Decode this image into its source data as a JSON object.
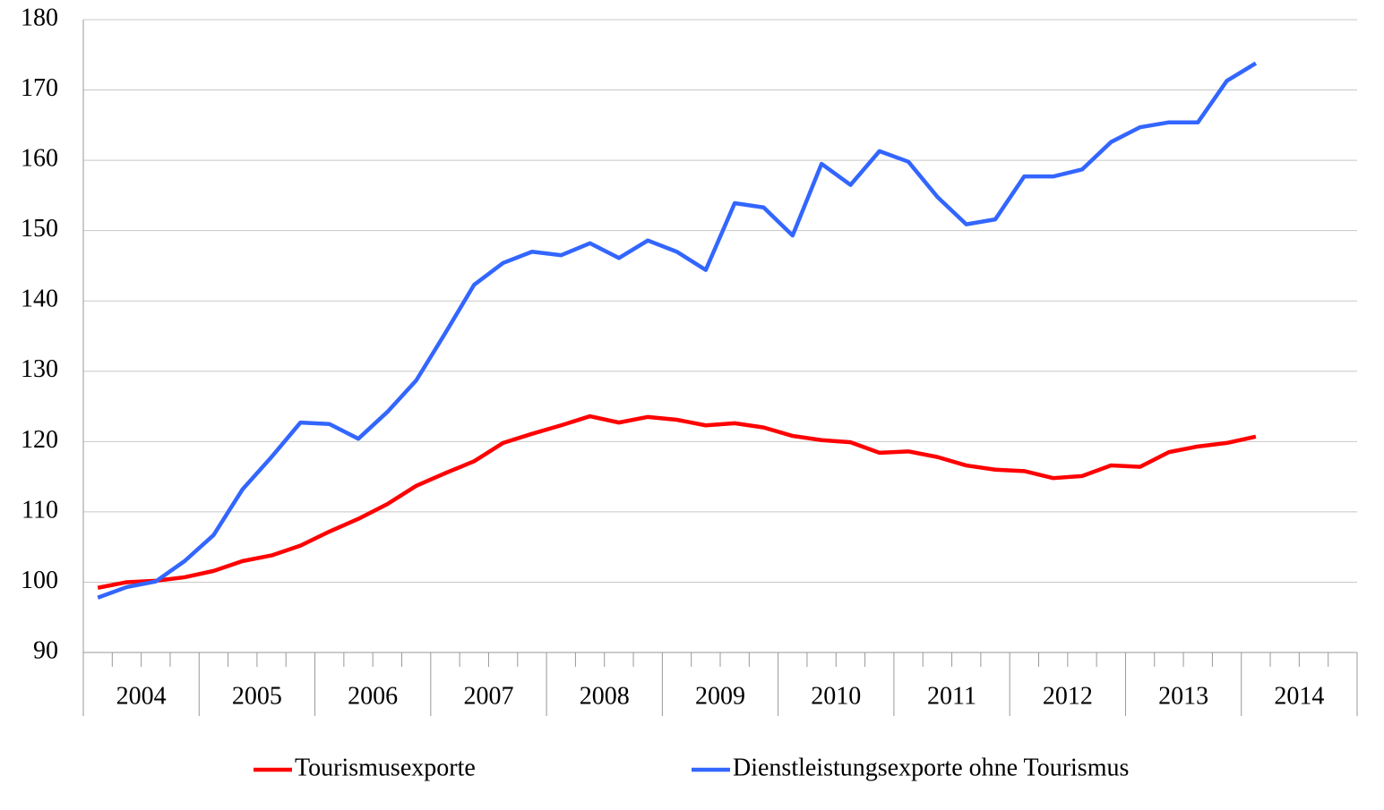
{
  "chart_data": {
    "type": "line",
    "categories": [
      null,
      null,
      null,
      null,
      null,
      null,
      null,
      null,
      null,
      null,
      null,
      null,
      null,
      null,
      null,
      null,
      null,
      null,
      null,
      null,
      null,
      null,
      null,
      null,
      null,
      null,
      null,
      null,
      null,
      null,
      null,
      null,
      null,
      null,
      null,
      null,
      null,
      null,
      null,
      null,
      null,
      null,
      null,
      null
    ],
    "year_labels": [
      "2004",
      "2005",
      "2006",
      "2007",
      "2008",
      "2009",
      "2010",
      "2011",
      "2012",
      "2013",
      "2014"
    ],
    "series": [
      {
        "name": "Tourismusexporte",
        "color": "#ff0000",
        "values": [
          99.2,
          100.0,
          100.2,
          100.7,
          101.6,
          103.0,
          103.8,
          105.2,
          107.2,
          109.0,
          111.1,
          113.7,
          115.5,
          117.2,
          119.8,
          121.1,
          122.3,
          123.6,
          122.7,
          123.5,
          123.1,
          122.3,
          122.6,
          122.0,
          120.8,
          120.2,
          119.9,
          118.4,
          118.6,
          117.8,
          116.6,
          116.0,
          115.8,
          114.8,
          115.1,
          116.6,
          116.4,
          118.5,
          119.3,
          119.8,
          120.7,
          null,
          null,
          null
        ]
      },
      {
        "name": "Dienstleistungsexporte ohne Tourismus",
        "color": "#3366ff",
        "values": [
          97.8,
          99.3,
          100.1,
          103.0,
          106.7,
          113.2,
          117.8,
          122.7,
          122.5,
          120.4,
          124.2,
          128.7,
          135.4,
          142.3,
          145.4,
          147.0,
          146.5,
          148.2,
          146.1,
          148.6,
          147.0,
          144.4,
          153.9,
          153.3,
          149.3,
          159.5,
          156.5,
          161.3,
          159.8,
          154.8,
          150.9,
          151.6,
          157.7,
          157.7,
          158.7,
          162.6,
          164.7,
          165.4,
          165.4,
          171.3,
          173.8,
          null,
          null,
          null
        ]
      }
    ],
    "ylim": [
      90,
      180
    ],
    "yticks": [
      90,
      100,
      110,
      120,
      130,
      140,
      150,
      160,
      170,
      180
    ],
    "grid": true,
    "legend": "bottom"
  }
}
